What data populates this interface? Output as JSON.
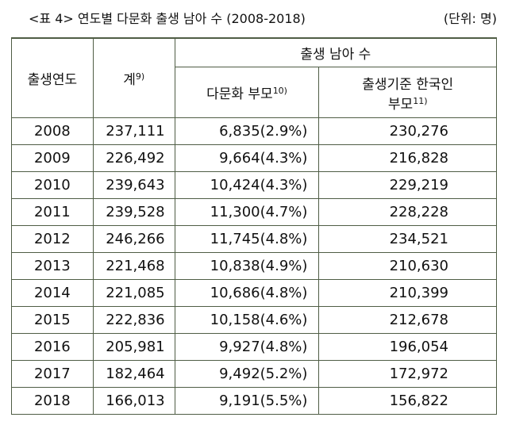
{
  "title": {
    "label": "<표 4> 연도별 다문화 출생 남아 수 (2008-2018)",
    "unit": "(단위: 명)"
  },
  "table": {
    "header": {
      "year": "출생연도",
      "total": "계",
      "total_note": "9)",
      "group": "출생 남아 수",
      "multicultural": "다문화 부모",
      "multicultural_note": "10)",
      "korean_line1": "출생기준 한국인",
      "korean_line2": "부모",
      "korean_note": "11)"
    },
    "rows": [
      [
        "2008",
        "237,111",
        "6,835(2.9%)",
        "230,276"
      ],
      [
        "2009",
        "226,492",
        "9,664(4.3%)",
        "216,828"
      ],
      [
        "2010",
        "239,643",
        "10,424(4.3%)",
        "229,219"
      ],
      [
        "2011",
        "239,528",
        "11,300(4.7%)",
        "228,228"
      ],
      [
        "2012",
        "246,266",
        "11,745(4.8%)",
        "234,521"
      ],
      [
        "2013",
        "221,468",
        "10,838(4.9%)",
        "210,630"
      ],
      [
        "2014",
        "221,085",
        "10,686(4.8%)",
        "210,399"
      ],
      [
        "2015",
        "222,836",
        "10,158(4.6%)",
        "212,678"
      ],
      [
        "2016",
        "205,981",
        "9,927(4.8%)",
        "196,054"
      ],
      [
        "2017",
        "182,464",
        "9,492(5.2%)",
        "172,972"
      ],
      [
        "2018",
        "166,013",
        "9,191(5.5%)",
        "156,822"
      ]
    ]
  }
}
